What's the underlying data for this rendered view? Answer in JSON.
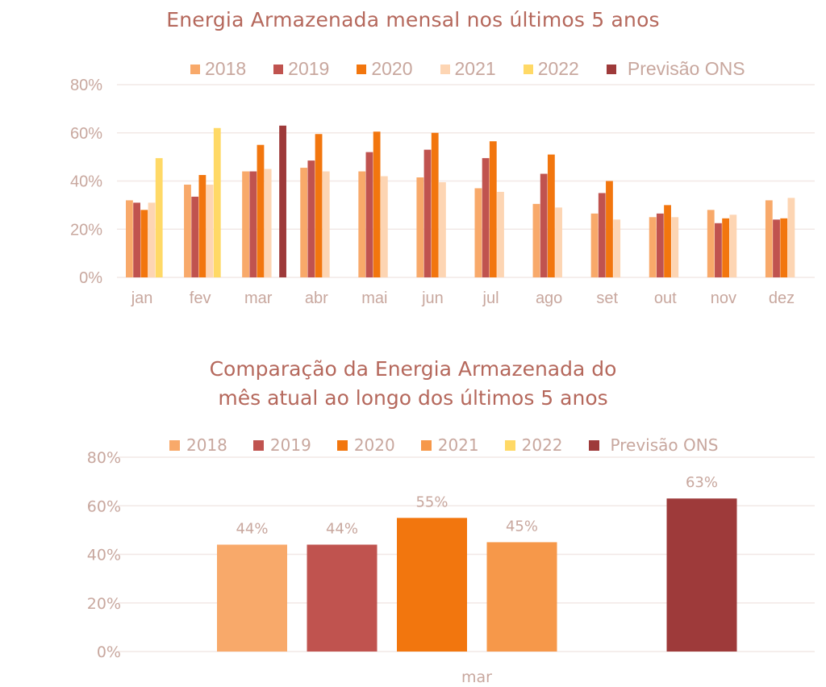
{
  "colors": {
    "2018": "#f8a96a",
    "2019": "#c0534f",
    "2020": "#f2760e",
    "2021": "#fdd5b3",
    "2021_bottom": "#f6984a",
    "2022": "#ffd966",
    "Previsão ONS": "#9e3a3a",
    "title": "#b5685c",
    "axis_text": "#c8a79e",
    "grid": "#f2e8e6"
  },
  "chart_data": [
    {
      "type": "bar",
      "title": "Energia Armazenada mensal nos últimos 5 anos",
      "xlabel": "",
      "ylabel": "",
      "ylim": [
        0,
        80
      ],
      "yticks": [
        "0%",
        "20%",
        "40%",
        "60%",
        "80%"
      ],
      "ytick_values": [
        0,
        20,
        40,
        60,
        80
      ],
      "grid": true,
      "legend_position": "top",
      "categories": [
        "jan",
        "fev",
        "mar",
        "abr",
        "mai",
        "jun",
        "jul",
        "ago",
        "set",
        "out",
        "nov",
        "dez"
      ],
      "legend": [
        "2018",
        "2019",
        "2020",
        "2021",
        "2022",
        "Previsão ONS"
      ],
      "series": [
        {
          "name": "2018",
          "values": [
            32,
            38.5,
            44,
            45.5,
            44,
            41.5,
            37,
            30.5,
            26.5,
            25,
            28,
            32
          ]
        },
        {
          "name": "2019",
          "values": [
            31,
            33.5,
            44,
            48.5,
            52,
            53,
            49.5,
            43,
            35,
            26.5,
            22.5,
            24
          ]
        },
        {
          "name": "2020",
          "values": [
            28,
            42.5,
            55,
            59.5,
            60.5,
            60,
            56.5,
            51,
            40,
            30,
            24.5,
            24.5
          ]
        },
        {
          "name": "2021",
          "values": [
            31,
            38.5,
            45,
            44,
            42,
            39.5,
            35.5,
            29,
            24,
            25,
            26,
            33
          ]
        },
        {
          "name": "2022",
          "values": [
            49.5,
            62,
            null,
            null,
            null,
            null,
            null,
            null,
            null,
            null,
            null,
            null
          ]
        },
        {
          "name": "Previsão ONS",
          "values": [
            null,
            null,
            63,
            null,
            null,
            null,
            null,
            null,
            null,
            null,
            null,
            null
          ]
        }
      ]
    },
    {
      "type": "bar",
      "title": "Comparação da Energia Armazenada do mês atual ao longo dos últimos 5 anos",
      "title_lines": [
        "Comparação da Energia Armazenada do",
        "mês atual ao longo dos últimos 5 anos"
      ],
      "xlabel": "",
      "ylabel": "",
      "ylim": [
        0,
        80
      ],
      "yticks": [
        "0%",
        "20%",
        "40%",
        "60%",
        "80%"
      ],
      "ytick_values": [
        0,
        20,
        40,
        60,
        80
      ],
      "grid": true,
      "legend_position": "top",
      "categories": [
        "mar"
      ],
      "legend": [
        "2018",
        "2019",
        "2020",
        "2021",
        "2022",
        "Previsão ONS"
      ],
      "series": [
        {
          "name": "2018",
          "values": [
            44
          ],
          "label": "44%"
        },
        {
          "name": "2019",
          "values": [
            44
          ],
          "label": "44%"
        },
        {
          "name": "2020",
          "values": [
            55
          ],
          "label": "55%"
        },
        {
          "name": "2021",
          "values": [
            45
          ],
          "label": "45%"
        },
        {
          "name": "2022",
          "values": [
            null
          ],
          "label": ""
        },
        {
          "name": "Previsão ONS",
          "values": [
            63
          ],
          "label": "63%"
        }
      ]
    }
  ]
}
